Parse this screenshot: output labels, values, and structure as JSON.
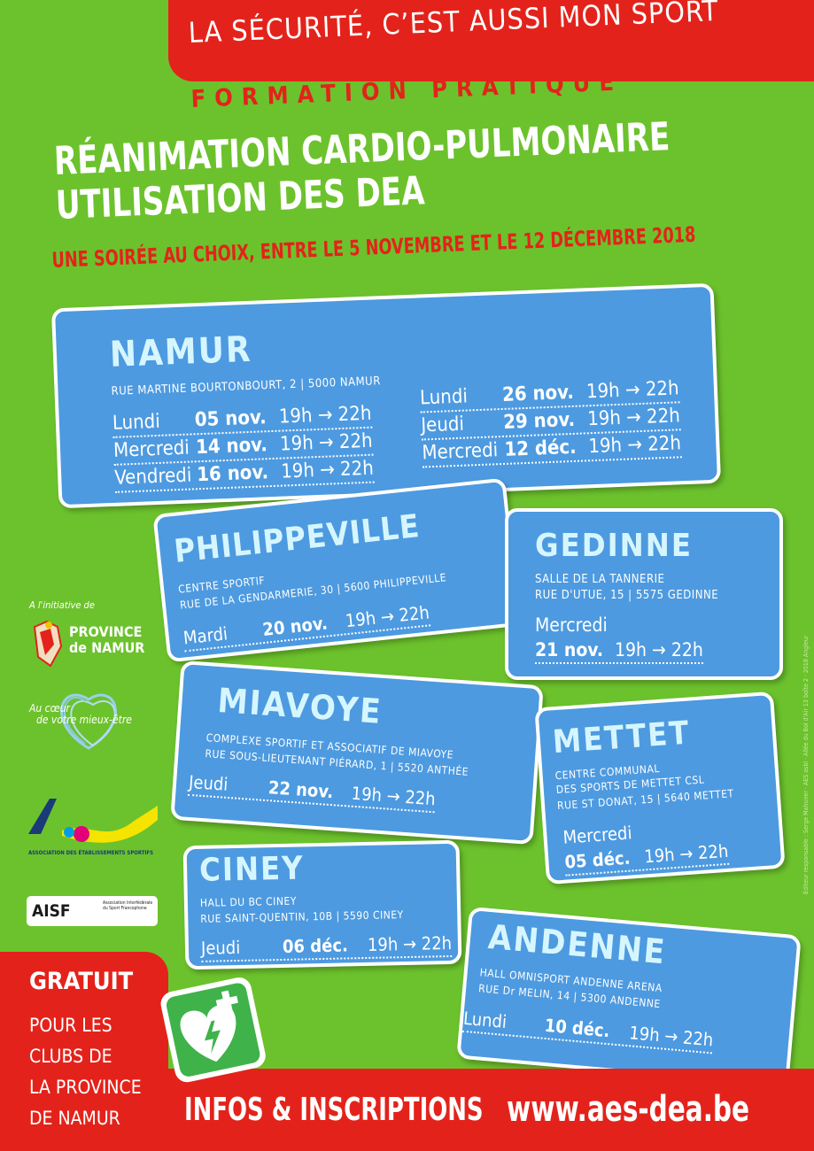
{
  "header": {
    "slogan": "LA SÉCURITÉ, C’EST AUSSI MON SPORT",
    "formation": "FORMATION PRATIQUE",
    "title_line1": "RÉANIMATION CARDIO-PULMONAIRE",
    "title_line2": "UTILISATION DES DEA",
    "subtitle": "UNE SOIRÉE AU CHOIX, ENTRE LE 5 NOVEMBRE ET LE 12 DÉCEMBRE 2018"
  },
  "locations": {
    "namur": {
      "city": "NAMUR",
      "address": "RUE MARTINE BOURTONBOURT, 2 | 5000 NAMUR",
      "sessions_left": [
        {
          "day": "Lundi",
          "date": "05 nov.",
          "time": "19h → 22h"
        },
        {
          "day": "Mercredi",
          "date": "14 nov.",
          "time": "19h → 22h"
        },
        {
          "day": "Vendredi",
          "date": "16 nov.",
          "time": "19h → 22h"
        }
      ],
      "sessions_right": [
        {
          "day": "Lundi",
          "date": "26 nov.",
          "time": "19h → 22h"
        },
        {
          "day": "Jeudi",
          "date": "29 nov.",
          "time": "19h → 22h"
        },
        {
          "day": "Mercredi",
          "date": "12 déc.",
          "time": "19h → 22h"
        }
      ]
    },
    "philippeville": {
      "city": "PHILIPPEVILLE",
      "line1": "CENTRE SPORTIF",
      "line2": "RUE DE LA GENDARMERIE, 30 | 5600 PHILIPPEVILLE",
      "session": {
        "day": "Mardi",
        "date": "20 nov.",
        "time": "19h → 22h"
      }
    },
    "gedinne": {
      "city": "GEDINNE",
      "line1": "SALLE DE LA TANNERIE",
      "line2": "RUE D'UTUE, 15 | 5575 GEDINNE",
      "session": {
        "day": "Mercredi",
        "date": "21 nov.",
        "time": "19h → 22h"
      }
    },
    "miavoye": {
      "city": "MIAVOYE",
      "line1": "COMPLEXE SPORTIF ET ASSOCIATIF DE MIAVOYE",
      "line2": "RUE SOUS-LIEUTENANT PIÉRARD, 1 | 5520 ANTHÉE",
      "session": {
        "day": "Jeudi",
        "date": "22 nov.",
        "time": "19h → 22h"
      }
    },
    "mettet": {
      "city": "METTET",
      "line1": "CENTRE COMMUNAL",
      "line2": "DES SPORTS DE METTET CSL",
      "line3": "RUE ST DONAT, 15 | 5640 METTET",
      "session": {
        "day": "Mercredi",
        "date": "05 déc.",
        "time": "19h → 22h"
      }
    },
    "ciney": {
      "city": "CINEY",
      "line1": "HALL DU BC CINEY",
      "line2": "RUE SAINT-QUENTIN, 10B | 5590 CINEY",
      "session": {
        "day": "Jeudi",
        "date": "06 déc.",
        "time": "19h → 22h"
      }
    },
    "andenne": {
      "city": "ANDENNE",
      "line1": "HALL OMNISPORT ANDENNE ARENA",
      "line2": "RUE Dr MELIN, 14 | 5300 ANDENNE",
      "session": {
        "day": "Lundi",
        "date": "10 déc.",
        "time": "19h → 22h"
      }
    }
  },
  "partners": {
    "initiative": "A l'initiative de",
    "province_line1": "PROVINCE",
    "province_line2": "de NAMUR",
    "mieux_etre_line1": "Au cœur",
    "mieux_etre_line2": "de votre mieux-être",
    "aes_caption": "ASSOCIATION DES ÉTABLISSEMENTS SPORTIFS",
    "aisf": "AISF",
    "aisf_sub": "Association Interfédérale du Sport Francophone"
  },
  "footer": {
    "gratuit": "GRATUIT",
    "gratuit_lines": [
      "POUR LES",
      "CLUBS DE",
      "LA PROVINCE",
      "DE NAMUR"
    ],
    "infos": "INFOS & INSCRIPTIONS",
    "website": "www.aes-dea.be"
  },
  "credit": "Éditeur responsable : Serge Mahuner · AES asbl · Allée du Bol d'Air 13 boîte 2 · 2018 Angleur",
  "colors": {
    "background": "#6cc22c",
    "red": "#e3231b",
    "card_blue": "#4d9ae0",
    "city_text": "#d6f6ff"
  }
}
